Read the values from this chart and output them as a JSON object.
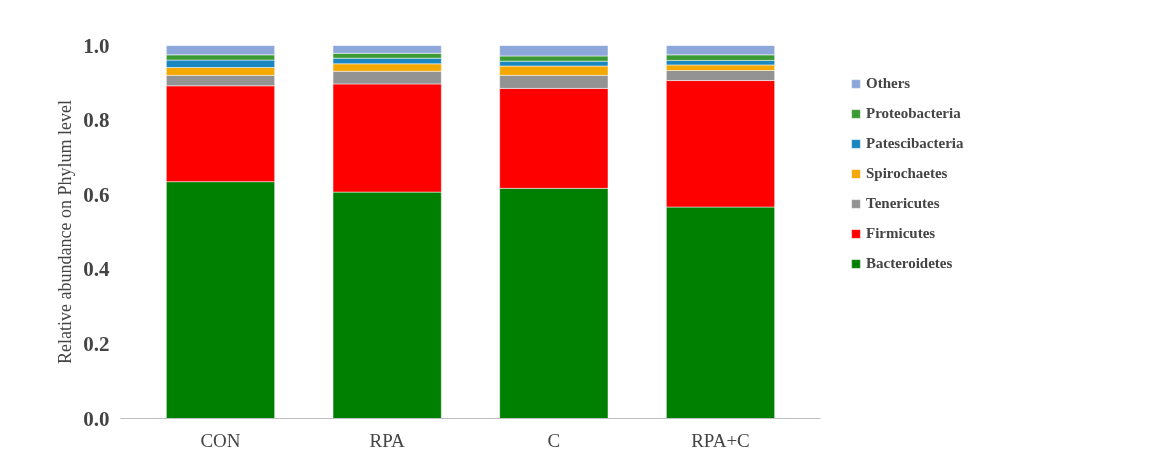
{
  "chart_data": {
    "type": "bar",
    "stacked": true,
    "ylabel": "Relative abundance on Phylum level",
    "categories": [
      "CON",
      "RPA",
      "C",
      "RPA+C"
    ],
    "series": [
      {
        "name": "Bacteroidetes",
        "color": "#008000",
        "values": [
          0.635,
          0.607,
          0.617,
          0.567
        ]
      },
      {
        "name": "Firmicutes",
        "color": "#ff0000",
        "values": [
          0.257,
          0.29,
          0.268,
          0.339
        ]
      },
      {
        "name": "Tenericutes",
        "color": "#939393",
        "values": [
          0.028,
          0.034,
          0.035,
          0.027
        ]
      },
      {
        "name": "Spirochaetes",
        "color": "#f5a800",
        "values": [
          0.021,
          0.02,
          0.025,
          0.015
        ]
      },
      {
        "name": "Patescibacteria",
        "color": "#1a87c0",
        "values": [
          0.02,
          0.015,
          0.013,
          0.012
        ]
      },
      {
        "name": "Proteobacteria",
        "color": "#3c9a35",
        "values": [
          0.014,
          0.013,
          0.014,
          0.015
        ]
      },
      {
        "name": "Others",
        "color": "#8ea7da",
        "values": [
          0.025,
          0.021,
          0.028,
          0.025
        ]
      }
    ],
    "ylim": [
      0,
      1
    ],
    "yticks": [
      {
        "value": 0,
        "label": "0.0"
      },
      0.2,
      0.4,
      0.6,
      0.8,
      {
        "value": 1,
        "label": "1.0"
      }
    ],
    "grid": false,
    "legend": "right"
  }
}
